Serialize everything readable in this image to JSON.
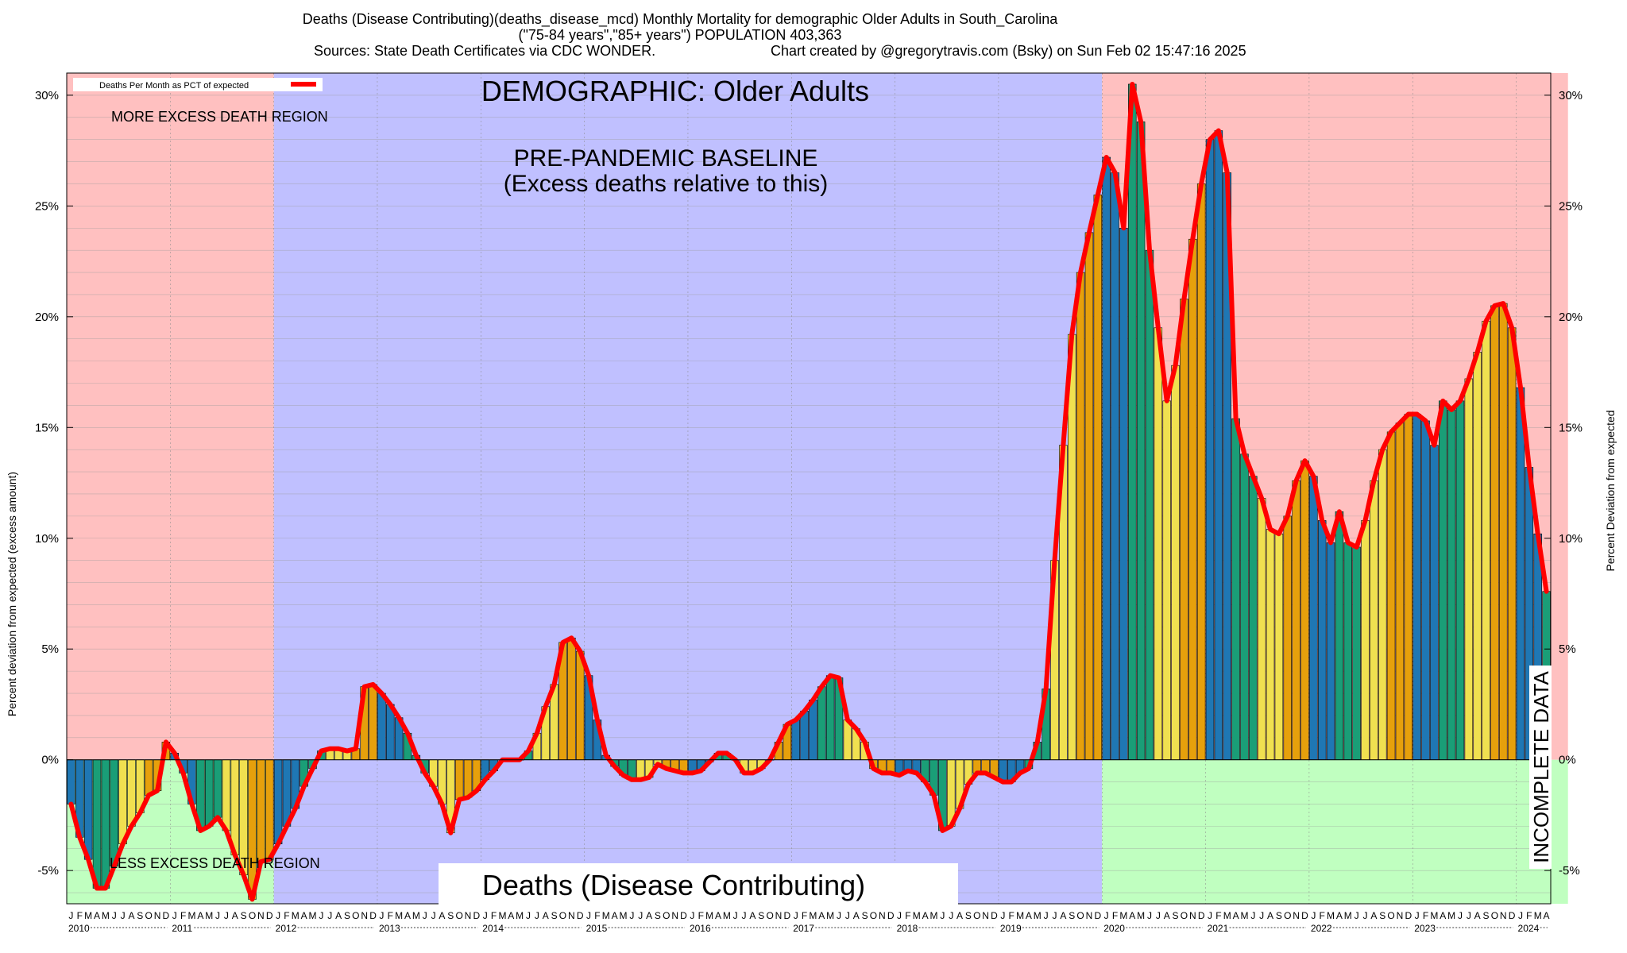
{
  "header": {
    "line1": "Deaths (Disease Contributing)(deaths_disease_mcd) Monthly Mortality for demographic Older Adults in South_Carolina",
    "line2": "(\"75-84 years\",\"85+ years\") POPULATION 403,363",
    "line3_left": "Sources: State Death Certificates via CDC WONDER.",
    "line3_right": "Chart created by @gregorytravis.com (Bsky) on Sun Feb 02 15:47:16 2025"
  },
  "annotations": {
    "demographic": "DEMOGRAPHIC: Older Adults",
    "baseline_line1": "PRE-PANDEMIC BASELINE",
    "baseline_line2": "(Excess deaths relative to this)",
    "more_region": "MORE EXCESS DEATH REGION",
    "less_region": "LESS EXCESS DEATH REGION",
    "incomplete": "INCOMPLETE DATA",
    "bottom_label": "Deaths (Disease Contributing)"
  },
  "legend": {
    "label": "Deaths Per Month as PCT of expected"
  },
  "colors": {
    "excess_region": "#ffc0c0",
    "deficit_region": "#c0ffc0",
    "baseline_region": "#c0c0ff",
    "line": "#ff0000",
    "bar_palette": [
      "#1f77b4",
      "#1a9e77",
      "#f0e050",
      "#e6a00c"
    ]
  },
  "chart_data": {
    "type": "bar",
    "title": "Deaths (Disease Contributing)(deaths_disease_mcd) Monthly Mortality for demographic Older Adults in South_Carolina",
    "ylabel_left": "Percent deviation from expected (excess amount)",
    "ylabel_right": "Percent Deviation from expected",
    "ylim": [
      -6.5,
      31
    ],
    "yticks": [
      -5,
      0,
      5,
      10,
      15,
      20,
      25,
      30
    ],
    "ytick_labels": [
      "-5%",
      "0%",
      "5%",
      "10%",
      "15%",
      "20%",
      "25%",
      "30%"
    ],
    "month_letters": [
      "J",
      "F",
      "M",
      "A",
      "M",
      "J",
      "J",
      "A",
      "S",
      "O",
      "N",
      "D"
    ],
    "years": [
      "2010",
      "2011",
      "2012",
      "2013",
      "2014",
      "2015",
      "2016",
      "2017",
      "2018",
      "2019",
      "2020",
      "2021",
      "2022",
      "2023",
      "2024"
    ],
    "baseline_years": [
      "2012",
      "2013",
      "2014",
      "2015",
      "2016",
      "2017",
      "2018",
      "2019"
    ],
    "incomplete_from_month_index": 174,
    "grid": true,
    "legend_position": "top-left",
    "series": [
      {
        "name": "Deaths Per Month as PCT of expected",
        "start": "2010-01",
        "values": [
          -2.0,
          -3.5,
          -4.5,
          -5.8,
          -5.8,
          -4.8,
          -3.8,
          -3.0,
          -2.4,
          -1.6,
          -1.4,
          0.8,
          0.3,
          -0.6,
          -2.0,
          -3.2,
          -3.0,
          -2.6,
          -3.2,
          -4.3,
          -5.2,
          -6.3,
          -4.6,
          -4.5,
          -3.8,
          -3.0,
          -2.2,
          -1.2,
          -0.4,
          0.4,
          0.5,
          0.5,
          0.4,
          0.5,
          3.3,
          3.4,
          3.0,
          2.5,
          1.9,
          1.2,
          0.2,
          -0.6,
          -1.2,
          -2.0,
          -3.3,
          -1.8,
          -1.7,
          -1.4,
          -0.9,
          -0.5,
          0.0,
          0.0,
          0.0,
          0.4,
          1.2,
          2.4,
          3.4,
          5.3,
          5.5,
          4.9,
          3.8,
          1.8,
          0.2,
          -0.3,
          -0.7,
          -0.9,
          -0.9,
          -0.8,
          -0.2,
          -0.4,
          -0.5,
          -0.6,
          -0.6,
          -0.5,
          -0.1,
          0.3,
          0.3,
          0.0,
          -0.6,
          -0.6,
          -0.4,
          0.0,
          0.8,
          1.6,
          1.8,
          2.2,
          2.7,
          3.3,
          3.8,
          3.7,
          1.8,
          1.4,
          0.8,
          -0.4,
          -0.6,
          -0.6,
          -0.7,
          -0.5,
          -0.6,
          -1.0,
          -1.6,
          -3.2,
          -3.0,
          -2.2,
          -1.1,
          -0.6,
          -0.6,
          -0.8,
          -1.0,
          -1.0,
          -0.6,
          -0.4,
          0.8,
          3.2,
          9.0,
          14.2,
          19.2,
          22.0,
          23.8,
          25.5,
          27.2,
          26.5,
          24.0,
          30.5,
          28.8,
          23.0,
          19.5,
          16.2,
          17.8,
          20.8,
          23.5,
          26.0,
          28.0,
          28.4,
          26.5,
          15.4,
          13.8,
          12.8,
          11.8,
          10.4,
          10.2,
          11.0,
          12.6,
          13.5,
          12.8,
          10.8,
          9.8,
          11.2,
          9.8,
          9.6,
          10.8,
          12.6,
          14.0,
          14.8,
          15.2,
          15.6,
          15.6,
          15.3,
          14.2,
          16.2,
          15.8,
          16.2,
          17.2,
          18.4,
          19.8,
          20.5,
          20.6,
          19.5,
          16.8,
          13.2,
          10.2,
          7.6
        ]
      }
    ]
  }
}
